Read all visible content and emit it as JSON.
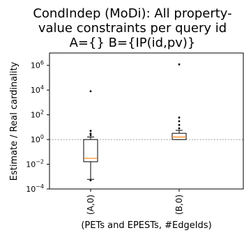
{
  "chart_data": {
    "type": "box",
    "title_lines": [
      "CondIndep (MoDi): All property-",
      "value constraints per query id",
      "A={} B={IP(id,pv)}"
    ],
    "xlabel": "(PETs and EPESTs, #EdgeIds)",
    "ylabel": "Estimate / Real cardinality",
    "yscale": "log10",
    "ylim": [
      0.0001,
      10000000
    ],
    "yticks": [
      {
        "exp": -4,
        "base": "10",
        "sup": "−4"
      },
      {
        "exp": -2,
        "base": "10",
        "sup": "−2"
      },
      {
        "exp": 0,
        "base": "10",
        "sup": "0"
      },
      {
        "exp": 2,
        "base": "10",
        "sup": "2"
      },
      {
        "exp": 4,
        "base": "10",
        "sup": "4"
      },
      {
        "exp": 6,
        "base": "10",
        "sup": "6"
      }
    ],
    "reference_line": {
      "y": 1,
      "style": "dotted"
    },
    "categories": [
      "(A,0)",
      "(B,0)"
    ],
    "boxes": [
      {
        "category": "(A,0)",
        "q1": 0.016,
        "median": 0.03,
        "q3": 1.0,
        "whisker_low": 0.0006,
        "whisker_high": 1.6,
        "outliers": [
          8000,
          5,
          3,
          2.2,
          0.0005
        ]
      },
      {
        "category": "(B,0)",
        "q1": 1.0,
        "median": 1.6,
        "q3": 3.2,
        "whisker_low": 1.0,
        "whisker_high": 5.5,
        "outliers": [
          1200000,
          60,
          30,
          15,
          8
        ]
      }
    ],
    "colors": {
      "median": "#ff7f0e",
      "box": "#000000",
      "reference": "#808080"
    }
  }
}
